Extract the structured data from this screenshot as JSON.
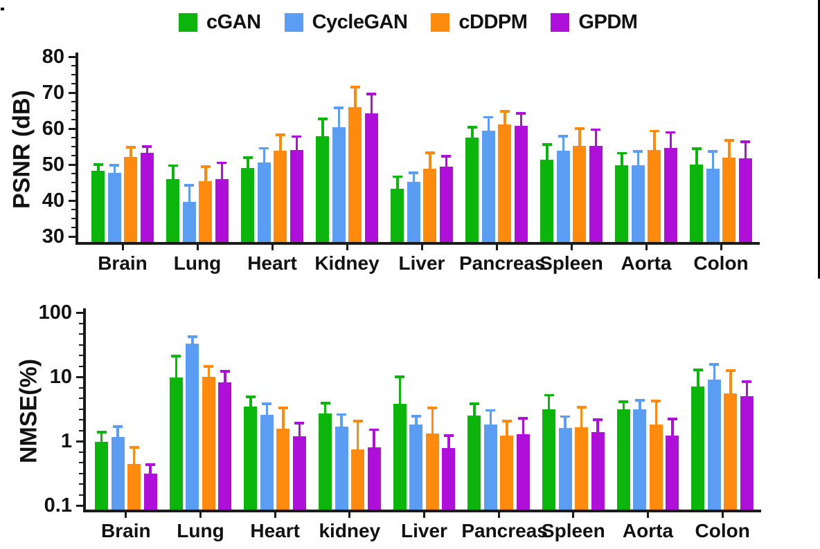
{
  "legend": {
    "items": [
      {
        "label": "cGAN",
        "color": "#0cb50c"
      },
      {
        "label": "CycleGAN",
        "color": "#5b9df3"
      },
      {
        "label": "cDDPM",
        "color": "#ff8a0d"
      },
      {
        "label": "GPDM",
        "color": "#ae10da"
      }
    ]
  },
  "chart_data": [
    {
      "type": "bar",
      "panel": "top",
      "title": "",
      "xlabel": "",
      "ylabel": "PSNR (dB)",
      "yscale": "linear",
      "ylim": [
        30,
        80
      ],
      "yticks": [
        30,
        40,
        50,
        60,
        70,
        80
      ],
      "ytick_labels": [
        "30",
        "40",
        "50",
        "60",
        "70",
        "80"
      ],
      "minor_tick_step": 2.5,
      "grid": false,
      "legend_position": "top-center",
      "error_bars": "upper-only, colored same as series",
      "categories": [
        "Brain",
        "Lung",
        "Heart",
        "Kidney",
        "Liver",
        "Pancreas",
        "Spleen",
        "Aorta",
        "Colon"
      ],
      "series": [
        {
          "name": "cGAN",
          "color": "#0cb50c",
          "values": [
            48.2,
            46.0,
            49.0,
            57.8,
            43.2,
            57.5,
            51.4,
            49.8,
            50.0
          ],
          "error_top": [
            50.0,
            49.7,
            51.9,
            62.7,
            46.6,
            60.4,
            55.6,
            53.2,
            54.4
          ]
        },
        {
          "name": "CycleGAN",
          "color": "#5b9df3",
          "values": [
            47.7,
            39.7,
            50.5,
            60.3,
            45.2,
            59.5,
            53.9,
            49.8,
            48.9
          ],
          "error_top": [
            49.8,
            44.2,
            54.5,
            65.8,
            47.7,
            63.2,
            57.9,
            53.7,
            53.7
          ]
        },
        {
          "name": "cDDPM",
          "color": "#ff8a0d",
          "values": [
            52.2,
            45.3,
            53.8,
            65.9,
            48.9,
            61.2,
            55.2,
            54.1,
            52.0
          ],
          "error_top": [
            54.8,
            49.4,
            58.3,
            71.5,
            53.3,
            64.8,
            60.0,
            59.3,
            56.7
          ]
        },
        {
          "name": "GPDM",
          "color": "#ae10da",
          "values": [
            53.2,
            46.0,
            54.0,
            64.2,
            49.5,
            60.8,
            55.2,
            54.6,
            51.7
          ],
          "error_top": [
            55.0,
            50.5,
            57.8,
            69.6,
            52.3,
            64.2,
            59.7,
            58.9,
            56.3
          ]
        }
      ]
    },
    {
      "type": "bar",
      "panel": "bottom",
      "title": "",
      "xlabel": "",
      "ylabel": "NMSE(%)",
      "yscale": "log",
      "ylim": [
        0.1,
        100
      ],
      "yticks": [
        0.1,
        1,
        10,
        100
      ],
      "ytick_labels": [
        "0.1",
        "1",
        "10",
        "100"
      ],
      "grid": false,
      "error_bars": "upper-only, colored same as series",
      "categories": [
        "Brain",
        "Lung",
        "Heart",
        "kidney",
        "Liver",
        "Pancreas",
        "Spleen",
        "Aorta",
        "Colon"
      ],
      "series": [
        {
          "name": "cGAN",
          "color": "#0cb50c",
          "values": [
            0.97,
            9.8,
            3.45,
            2.7,
            3.8,
            2.5,
            3.1,
            3.1,
            7.1
          ],
          "error_top": [
            1.38,
            21,
            4.9,
            3.9,
            10,
            3.8,
            5.2,
            4.1,
            12.8
          ]
        },
        {
          "name": "CycleGAN",
          "color": "#5b9df3",
          "values": [
            1.15,
            33,
            2.55,
            1.7,
            1.8,
            1.8,
            1.6,
            3.1,
            9.0
          ],
          "error_top": [
            1.68,
            42,
            3.8,
            2.6,
            2.45,
            3.0,
            2.4,
            4.3,
            15.6
          ]
        },
        {
          "name": "cDDPM",
          "color": "#ff8a0d",
          "values": [
            0.44,
            9.9,
            1.55,
            0.74,
            1.3,
            1.22,
            1.65,
            1.8,
            5.5
          ],
          "error_top": [
            0.8,
            14.5,
            3.3,
            2.05,
            3.3,
            2.05,
            3.35,
            4.2,
            12.5
          ]
        },
        {
          "name": "GPDM",
          "color": "#ae10da",
          "values": [
            0.31,
            8.2,
            1.2,
            0.8,
            0.78,
            1.28,
            1.38,
            1.22,
            5.0
          ],
          "error_top": [
            0.43,
            12.2,
            1.9,
            1.5,
            1.22,
            2.26,
            2.15,
            2.2,
            8.4
          ]
        }
      ]
    }
  ]
}
